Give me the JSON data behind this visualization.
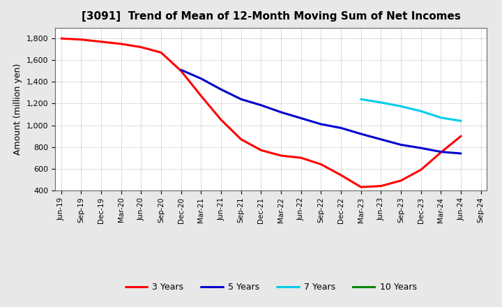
{
  "title": "[3091]  Trend of Mean of 12-Month Moving Sum of Net Incomes",
  "ylabel": "Amount (million yen)",
  "background_color": "#e8e8e8",
  "plot_bg_color": "#ffffff",
  "grid_color": "#999999",
  "ylim": [
    400,
    1900
  ],
  "yticks": [
    400,
    600,
    800,
    1000,
    1200,
    1400,
    1600,
    1800
  ],
  "xtick_labels": [
    "Jun-19",
    "Sep-19",
    "Dec-19",
    "Mar-20",
    "Jun-20",
    "Sep-20",
    "Dec-20",
    "Mar-21",
    "Jun-21",
    "Sep-21",
    "Dec-21",
    "Mar-22",
    "Jun-22",
    "Sep-22",
    "Dec-22",
    "Mar-23",
    "Jun-23",
    "Sep-23",
    "Dec-23",
    "Mar-24",
    "Jun-24",
    "Sep-24"
  ],
  "series": {
    "3 Years": {
      "color": "#ff0000",
      "data_x": [
        0,
        1,
        2,
        3,
        4,
        5,
        6,
        7,
        8,
        9,
        10,
        11,
        12,
        13,
        14,
        15,
        16,
        17,
        18,
        19,
        20
      ],
      "data_y": [
        1800,
        1790,
        1770,
        1750,
        1720,
        1670,
        1500,
        1270,
        1050,
        870,
        770,
        720,
        700,
        640,
        540,
        430,
        440,
        490,
        590,
        750,
        900
      ]
    },
    "5 Years": {
      "color": "#0000cc",
      "data_x": [
        6,
        7,
        8,
        9,
        10,
        11,
        12,
        13,
        14,
        15,
        16,
        17,
        18,
        19,
        20
      ],
      "data_y": [
        1510,
        1430,
        1330,
        1240,
        1185,
        1120,
        1065,
        1010,
        975,
        920,
        870,
        820,
        790,
        755,
        740
      ]
    },
    "7 Years": {
      "color": "#00ccee",
      "data_x": [
        15,
        16,
        17,
        18,
        19,
        20
      ],
      "data_y": [
        1240,
        1210,
        1175,
        1130,
        1070,
        1040
      ]
    },
    "10 Years": {
      "color": "#008800",
      "data_x": [],
      "data_y": []
    }
  },
  "legend_order": [
    "3 Years",
    "5 Years",
    "7 Years",
    "10 Years"
  ]
}
